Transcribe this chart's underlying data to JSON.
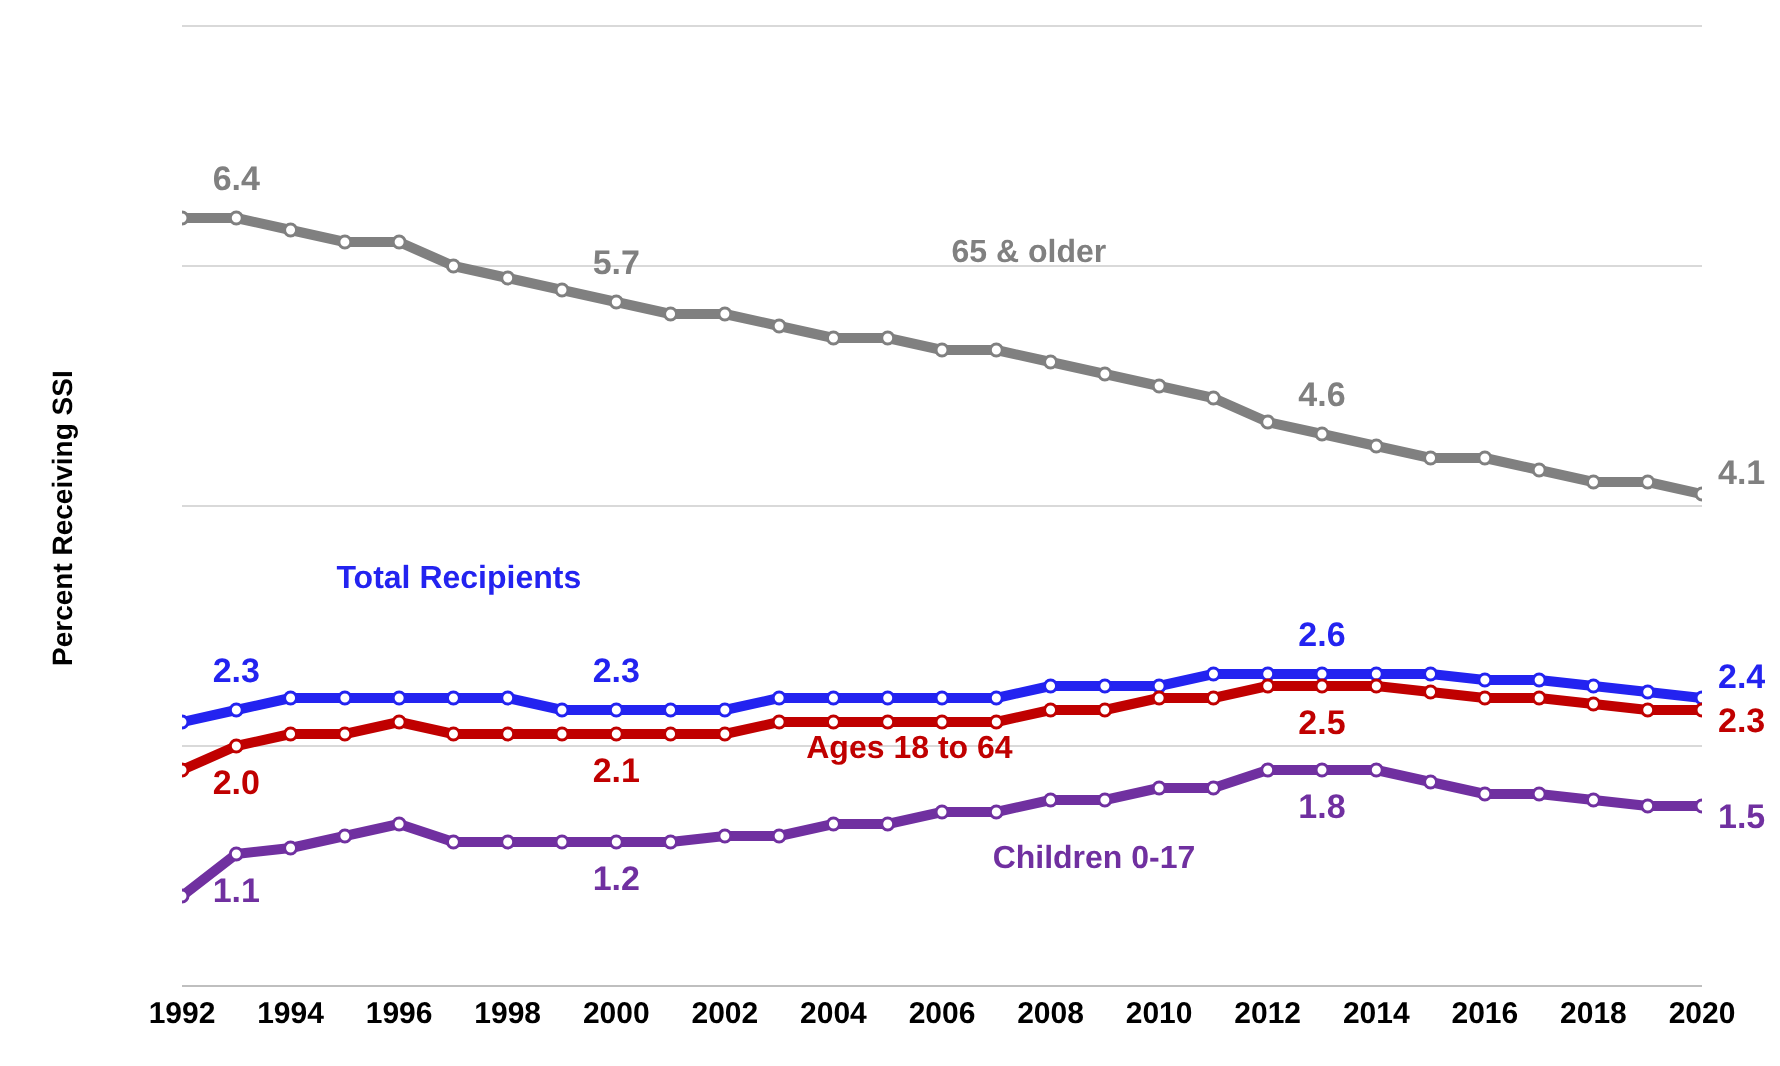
{
  "chart_data": {
    "type": "line",
    "ylabel": "Percent Receiving SSI",
    "x": [
      1992,
      1993,
      1994,
      1995,
      1996,
      1997,
      1998,
      1999,
      2000,
      2001,
      2002,
      2003,
      2004,
      2005,
      2006,
      2007,
      2008,
      2009,
      2010,
      2011,
      2012,
      2013,
      2014,
      2015,
      2016,
      2017,
      2018,
      2019,
      2020
    ],
    "series": [
      {
        "name": "65 & older",
        "color": "#808080",
        "values": [
          6.4,
          6.4,
          6.3,
          6.2,
          6.2,
          6.0,
          5.9,
          5.8,
          5.7,
          5.6,
          5.6,
          5.5,
          5.4,
          5.4,
          5.3,
          5.3,
          5.2,
          5.1,
          5.0,
          4.9,
          4.7,
          4.6,
          4.5,
          4.4,
          4.4,
          4.3,
          4.2,
          4.2,
          4.1
        ],
        "value_labels": [
          null,
          "6.4",
          null,
          null,
          null,
          null,
          null,
          null,
          "5.7",
          null,
          null,
          null,
          null,
          null,
          null,
          null,
          null,
          null,
          null,
          null,
          null,
          "4.6",
          null,
          null,
          null,
          null,
          null,
          null,
          "4.1"
        ]
      },
      {
        "name": "Total Recipients",
        "color": "#2323f0",
        "values": [
          2.2,
          2.3,
          2.4,
          2.4,
          2.4,
          2.4,
          2.4,
          2.3,
          2.3,
          2.3,
          2.3,
          2.4,
          2.4,
          2.4,
          2.4,
          2.4,
          2.5,
          2.5,
          2.5,
          2.6,
          2.6,
          2.6,
          2.6,
          2.6,
          2.55,
          2.55,
          2.5,
          2.45,
          2.4
        ],
        "value_labels": [
          null,
          "2.3",
          null,
          null,
          null,
          null,
          null,
          null,
          "2.3",
          null,
          null,
          null,
          null,
          null,
          null,
          null,
          null,
          null,
          null,
          null,
          null,
          "2.6",
          null,
          null,
          null,
          null,
          null,
          null,
          "2.4"
        ]
      },
      {
        "name": "Ages 18 to 64",
        "color": "#c00000",
        "values": [
          1.8,
          2.0,
          2.1,
          2.1,
          2.2,
          2.1,
          2.1,
          2.1,
          2.1,
          2.1,
          2.1,
          2.2,
          2.2,
          2.2,
          2.2,
          2.2,
          2.3,
          2.3,
          2.4,
          2.4,
          2.5,
          2.5,
          2.5,
          2.45,
          2.4,
          2.4,
          2.35,
          2.3,
          2.3
        ],
        "value_labels": [
          null,
          "2.0",
          null,
          null,
          null,
          null,
          null,
          null,
          "2.1",
          null,
          null,
          null,
          null,
          null,
          null,
          null,
          null,
          null,
          null,
          null,
          null,
          "2.5",
          null,
          null,
          null,
          null,
          null,
          null,
          "2.3"
        ]
      },
      {
        "name": "Children 0-17",
        "color": "#7030a0",
        "values": [
          0.75,
          1.1,
          1.15,
          1.25,
          1.35,
          1.2,
          1.2,
          1.2,
          1.2,
          1.2,
          1.25,
          1.25,
          1.35,
          1.35,
          1.45,
          1.45,
          1.55,
          1.55,
          1.65,
          1.65,
          1.8,
          1.8,
          1.8,
          1.7,
          1.6,
          1.6,
          1.55,
          1.5,
          1.5
        ],
        "value_labels": [
          null,
          "1.1",
          null,
          null,
          null,
          null,
          null,
          null,
          "1.2",
          null,
          null,
          null,
          null,
          null,
          null,
          null,
          null,
          null,
          null,
          null,
          null,
          "1.8",
          null,
          null,
          null,
          null,
          null,
          null,
          "1.5"
        ]
      }
    ],
    "xlim": [
      1992,
      2020
    ],
    "xticks": [
      1992,
      1994,
      1996,
      1998,
      2000,
      2002,
      2004,
      2006,
      2008,
      2010,
      2012,
      2014,
      2016,
      2018,
      2020
    ],
    "tick_labels": "x",
    "grid": "y",
    "legend": false,
    "marker": "circle",
    "line_style": "solid"
  }
}
